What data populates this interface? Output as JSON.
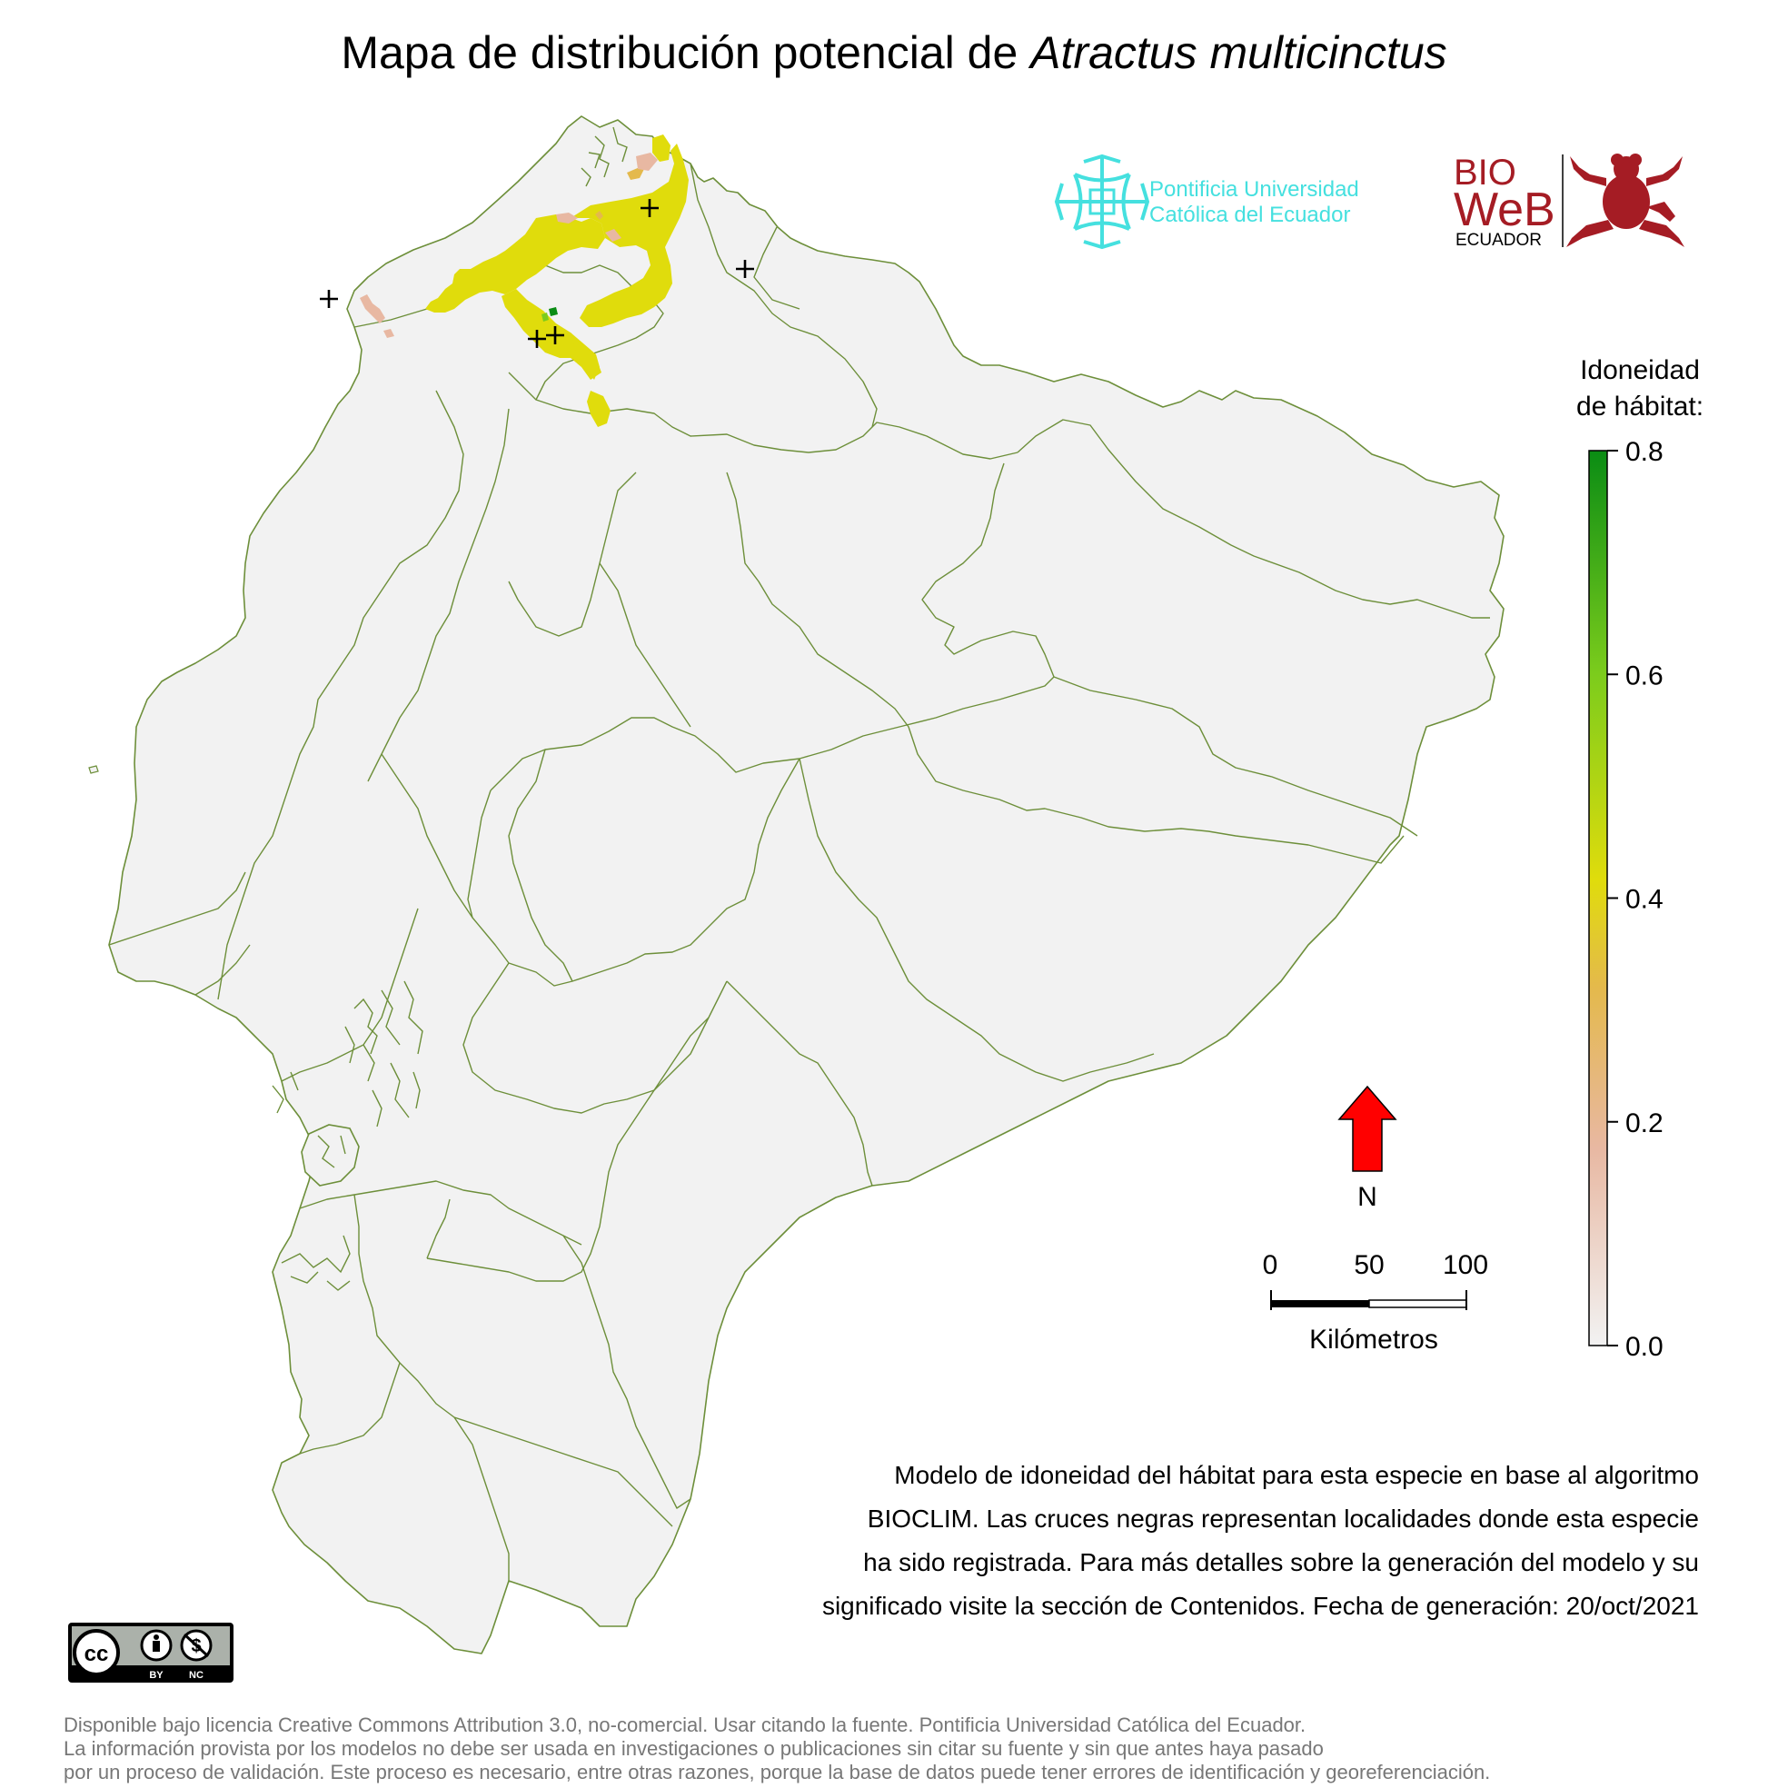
{
  "title": {
    "prefix": "Mapa de distribución potencial de ",
    "species": "Atractus multicinctus"
  },
  "logos": {
    "puce_name_line1": "Pontificia Universidad",
    "puce_name_line2": "Católica del Ecuador",
    "bioweb_line1": "BIO",
    "bioweb_line2": "WeB",
    "bioweb_line3": "ECUADOR"
  },
  "legend": {
    "title_line1": "Idoneidad",
    "title_line2": "de hábitat:",
    "ticks": [
      "0.8",
      "0.6",
      "0.4",
      "0.2",
      "0.0"
    ],
    "tick_values": [
      0.8,
      0.6,
      0.4,
      0.2,
      0.0
    ],
    "range": [
      0.0,
      0.8
    ],
    "colors": [
      "#f2f2f2",
      "#e8b8a2",
      "#e4b94c",
      "#e0dc0c",
      "#7ccc1c",
      "#0a8c14"
    ]
  },
  "north_arrow": {
    "label": "N",
    "color": "#ff0000"
  },
  "scale_bar": {
    "tick_labels": [
      "0",
      "50",
      "100"
    ],
    "unit_label": "Kilómetros"
  },
  "caption": {
    "line1": "Modelo de idoneidad del hábitat para esta especie en base al algoritmo",
    "line2": "BIOCLIM. Las cruces negras representan localidades donde esta especie",
    "line3": "ha sido registrada. Para más detalles sobre la generación del modelo y su",
    "line4": "significado visite la sección de Contenidos. Fecha de generación: 20/oct/2021"
  },
  "license_badge": {
    "cc": "cc",
    "by": "BY",
    "nc": "NC"
  },
  "license_text": {
    "line1": "Disponible bajo licencia Creative Commons Attribution 3.0, no-comercial. Usar citando la fuente. Pontificia Universidad Católica del Ecuador.",
    "line2": "La información provista por los modelos no debe ser usada en investigaciones o publicaciones sin citar su fuente y sin que antes haya pasado",
    "line3": "por un proceso de validación. Este proceso es necesario, entre otras razones, porque la base de datos puede tener errores de identificación y georeferenciación."
  },
  "colors": {
    "land": "#f2f2f2",
    "borders": "#6d8f3a",
    "suitability_high": "#0a8c14",
    "suitability_mid": "#e0dc0c",
    "suitability_low": "#e8b8a2",
    "record_marker": "#000000"
  },
  "record_count": 5
}
